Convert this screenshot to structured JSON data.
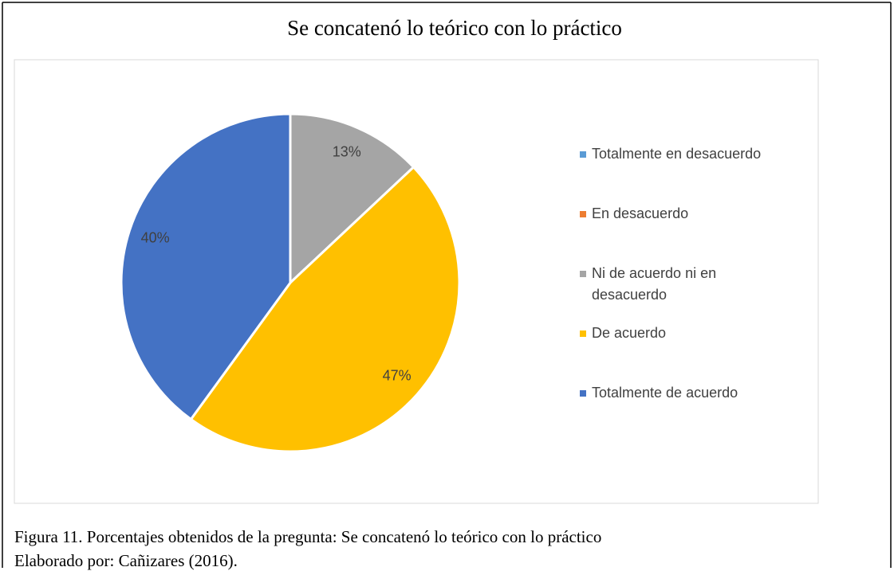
{
  "chart_data": {
    "type": "pie",
    "title": "Se concatenó lo teórico con lo práctico",
    "categories": [
      "Totalmente en desacuerdo",
      "En desacuerdo",
      "Ni de acuerdo ni en desacuerdo",
      "De acuerdo",
      "Totalmente de acuerdo"
    ],
    "values": [
      0,
      0,
      13,
      47,
      40
    ],
    "value_labels": [
      null,
      null,
      "13%",
      "47%",
      "40%"
    ],
    "colors": [
      "#5b9bd5",
      "#ed7d31",
      "#a5a5a5",
      "#ffc000",
      "#4472c4"
    ],
    "legend": "right"
  },
  "caption": [
    "Figura 11. Porcentajes obtenidos de la pregunta: Se concatenó lo teórico con lo práctico",
    "Elaborado por: Cañizares (2016)."
  ]
}
